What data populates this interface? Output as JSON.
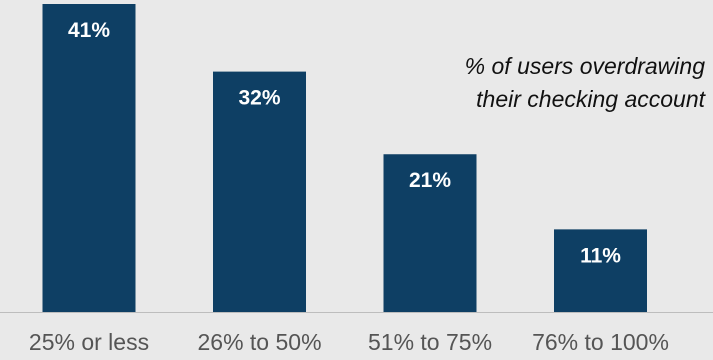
{
  "chart_data": {
    "type": "bar",
    "title": "",
    "xlabel": "",
    "ylabel": "",
    "categories": [
      "25% or less",
      "26% to 50%",
      "51% to 75%",
      "76% to 100%"
    ],
    "values": [
      41,
      32,
      21,
      11
    ],
    "value_labels": [
      "41%",
      "32%",
      "21%",
      "11%"
    ],
    "ylim": [
      0,
      41
    ],
    "grid": false,
    "legend": "none",
    "bar_color": "#0e3f64",
    "annotation": {
      "line1": "% of users overdrawing",
      "line2": "their checking account"
    }
  }
}
